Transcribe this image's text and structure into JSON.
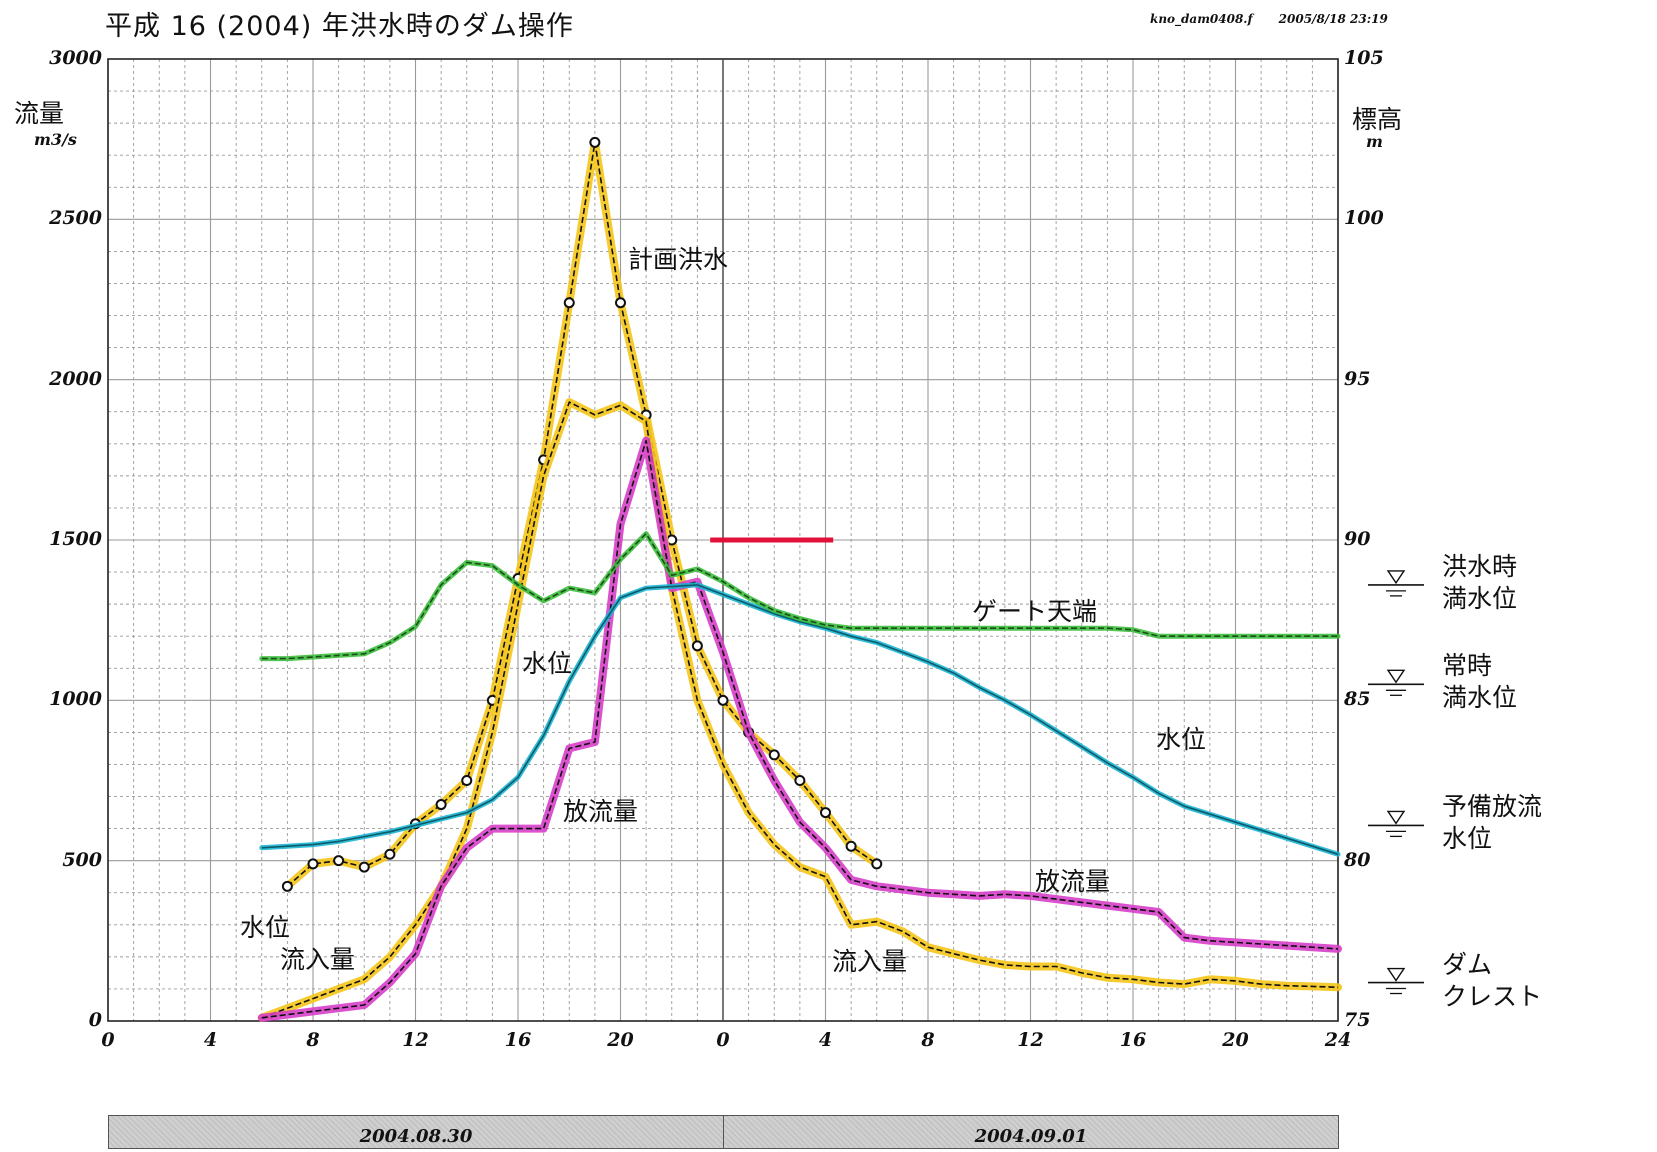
{
  "header": {
    "title": "平成 16 (2004) 年洪水時のダム操作",
    "file": "kno_dam0408.f",
    "stamp": "2005/8/18  23:19"
  },
  "chart_data": {
    "type": "line",
    "left_axis": {
      "label": "流量",
      "unit": "m3/s",
      "ylim": [
        0,
        3000
      ],
      "ticks": [
        0,
        500,
        1000,
        1500,
        2000,
        2500,
        3000
      ]
    },
    "right_axis": {
      "label": "標高",
      "unit": "m",
      "ylim": [
        75,
        105
      ],
      "ticks": [
        75,
        80,
        85,
        90,
        95,
        100,
        105
      ]
    },
    "x_axis": {
      "xlim": [
        0,
        48
      ],
      "tick_labels": [
        "0",
        "4",
        "8",
        "12",
        "16",
        "20",
        "0",
        "4",
        "8",
        "12",
        "16",
        "20",
        "24"
      ],
      "dates": [
        "2004.08.30",
        "2004.09.01"
      ],
      "grid": true
    },
    "series": [
      {
        "name": "計画洪水",
        "axis": "left",
        "color": "#f5c518",
        "markers": true,
        "points": [
          [
            7,
            420
          ],
          [
            8,
            490
          ],
          [
            9,
            500
          ],
          [
            10,
            480
          ],
          [
            11,
            520
          ],
          [
            12,
            615
          ],
          [
            13,
            675
          ],
          [
            14,
            750
          ],
          [
            15,
            1000
          ],
          [
            16,
            1380
          ],
          [
            17,
            1750
          ],
          [
            18,
            2240
          ],
          [
            19,
            2740
          ],
          [
            20,
            2240
          ],
          [
            21,
            1890
          ],
          [
            22,
            1500
          ],
          [
            23,
            1170
          ],
          [
            24,
            1000
          ],
          [
            25,
            900
          ],
          [
            26,
            830
          ],
          [
            27,
            750
          ],
          [
            28,
            650
          ],
          [
            29,
            545
          ],
          [
            30,
            490
          ]
        ]
      },
      {
        "name": "流入量",
        "axis": "left",
        "color": "#f5c518",
        "points": [
          [
            6,
            10
          ],
          [
            7,
            40
          ],
          [
            8,
            70
          ],
          [
            9,
            100
          ],
          [
            10,
            130
          ],
          [
            11,
            200
          ],
          [
            12,
            300
          ],
          [
            13,
            420
          ],
          [
            14,
            600
          ],
          [
            15,
            900
          ],
          [
            16,
            1300
          ],
          [
            17,
            1700
          ],
          [
            18,
            1930
          ],
          [
            19,
            1890
          ],
          [
            20,
            1920
          ],
          [
            21,
            1870
          ],
          [
            22,
            1350
          ],
          [
            23,
            1000
          ],
          [
            24,
            800
          ],
          [
            25,
            650
          ],
          [
            26,
            550
          ],
          [
            27,
            480
          ],
          [
            28,
            450
          ],
          [
            29,
            300
          ],
          [
            30,
            310
          ],
          [
            31,
            280
          ],
          [
            32,
            230
          ],
          [
            33,
            210
          ],
          [
            34,
            190
          ],
          [
            35,
            175
          ],
          [
            36,
            170
          ],
          [
            37,
            170
          ],
          [
            38,
            150
          ],
          [
            39,
            135
          ],
          [
            40,
            130
          ],
          [
            41,
            120
          ],
          [
            42,
            115
          ],
          [
            43,
            130
          ],
          [
            44,
            125
          ],
          [
            45,
            115
          ],
          [
            46,
            110
          ],
          [
            47,
            108
          ],
          [
            48,
            105
          ]
        ]
      },
      {
        "name": "放流量",
        "axis": "left",
        "color": "#d63fc8",
        "points": [
          [
            6,
            10
          ],
          [
            7,
            20
          ],
          [
            8,
            30
          ],
          [
            9,
            40
          ],
          [
            10,
            50
          ],
          [
            11,
            120
          ],
          [
            12,
            210
          ],
          [
            13,
            420
          ],
          [
            14,
            540
          ],
          [
            15,
            600
          ],
          [
            16,
            600
          ],
          [
            17,
            600
          ],
          [
            18,
            850
          ],
          [
            19,
            870
          ],
          [
            20,
            1550
          ],
          [
            21,
            1810
          ],
          [
            22,
            1350
          ],
          [
            23,
            1370
          ],
          [
            24,
            1150
          ],
          [
            25,
            900
          ],
          [
            26,
            750
          ],
          [
            27,
            620
          ],
          [
            28,
            540
          ],
          [
            29,
            440
          ],
          [
            30,
            420
          ],
          [
            31,
            410
          ],
          [
            32,
            400
          ],
          [
            33,
            395
          ],
          [
            34,
            390
          ],
          [
            35,
            395
          ],
          [
            36,
            390
          ],
          [
            37,
            380
          ],
          [
            38,
            370
          ],
          [
            39,
            360
          ],
          [
            40,
            350
          ],
          [
            41,
            340
          ],
          [
            42,
            260
          ],
          [
            43,
            250
          ],
          [
            44,
            245
          ],
          [
            45,
            240
          ],
          [
            46,
            235
          ],
          [
            47,
            230
          ],
          [
            48,
            225
          ]
        ]
      },
      {
        "name": "水位",
        "axis": "right",
        "color": "#19b5d1",
        "points": [
          [
            6,
            80.4
          ],
          [
            7,
            80.45
          ],
          [
            8,
            80.5
          ],
          [
            9,
            80.6
          ],
          [
            10,
            80.75
          ],
          [
            11,
            80.9
          ],
          [
            12,
            81.1
          ],
          [
            13,
            81.3
          ],
          [
            14,
            81.5
          ],
          [
            15,
            81.9
          ],
          [
            16,
            82.6
          ],
          [
            17,
            83.9
          ],
          [
            18,
            85.6
          ],
          [
            19,
            87.0
          ],
          [
            20,
            88.2
          ],
          [
            21,
            88.5
          ],
          [
            22,
            88.55
          ],
          [
            23,
            88.6
          ],
          [
            24,
            88.3
          ],
          [
            25,
            88.0
          ],
          [
            26,
            87.7
          ],
          [
            27,
            87.45
          ],
          [
            28,
            87.25
          ],
          [
            29,
            87.0
          ],
          [
            30,
            86.8
          ],
          [
            31,
            86.5
          ],
          [
            32,
            86.2
          ],
          [
            33,
            85.85
          ],
          [
            34,
            85.4
          ],
          [
            35,
            85.0
          ],
          [
            36,
            84.55
          ],
          [
            37,
            84.05
          ],
          [
            38,
            83.55
          ],
          [
            39,
            83.05
          ],
          [
            40,
            82.6
          ],
          [
            41,
            82.1
          ],
          [
            42,
            81.7
          ],
          [
            43,
            81.45
          ],
          [
            44,
            81.2
          ],
          [
            45,
            80.95
          ],
          [
            46,
            80.7
          ],
          [
            47,
            80.45
          ],
          [
            48,
            80.2
          ]
        ]
      },
      {
        "name": "ゲート天端",
        "axis": "right",
        "color": "#3cbf3c",
        "points": [
          [
            6,
            86.3
          ],
          [
            7,
            86.3
          ],
          [
            8,
            86.35
          ],
          [
            9,
            86.4
          ],
          [
            10,
            86.45
          ],
          [
            11,
            86.8
          ],
          [
            12,
            87.3
          ],
          [
            13,
            88.6
          ],
          [
            14,
            89.3
          ],
          [
            15,
            89.2
          ],
          [
            16,
            88.6
          ],
          [
            17,
            88.1
          ],
          [
            18,
            88.5
          ],
          [
            19,
            88.35
          ],
          [
            20,
            89.4
          ],
          [
            21,
            90.2
          ],
          [
            22,
            88.9
          ],
          [
            23,
            89.1
          ],
          [
            24,
            88.7
          ],
          [
            25,
            88.2
          ],
          [
            26,
            87.8
          ],
          [
            27,
            87.55
          ],
          [
            28,
            87.35
          ],
          [
            29,
            87.25
          ],
          [
            30,
            87.25
          ],
          [
            31,
            87.25
          ],
          [
            32,
            87.25
          ],
          [
            33,
            87.25
          ],
          [
            34,
            87.25
          ],
          [
            35,
            87.25
          ],
          [
            36,
            87.25
          ],
          [
            37,
            87.25
          ],
          [
            38,
            87.25
          ],
          [
            39,
            87.25
          ],
          [
            40,
            87.2
          ],
          [
            41,
            87.0
          ],
          [
            42,
            87.0
          ],
          [
            43,
            87.0
          ],
          [
            44,
            87.0
          ],
          [
            45,
            87.0
          ],
          [
            46,
            87.0
          ],
          [
            47,
            87.0
          ],
          [
            48,
            87.0
          ]
        ]
      }
    ],
    "annotations": [
      "計画洪水",
      "ゲート天端",
      "水位",
      "水位",
      "水位",
      "放流量",
      "放流量",
      "流入量",
      "流入量"
    ],
    "reference_levels": [
      {
        "label_lines": [
          "洪水時",
          "満水位"
        ],
        "elev": 88.6
      },
      {
        "label_lines": [
          "常時",
          "満水位"
        ],
        "elev": 85.5
      },
      {
        "label_lines": [
          "予備放流",
          "水位"
        ],
        "elev": 81.1
      },
      {
        "label_lines": [
          "ダム",
          "クレスト"
        ],
        "elev": 76.2
      }
    ],
    "marker_line": {
      "color": "#e0103a",
      "x": [
        23.5,
        28.3
      ],
      "y": 1500
    },
    "colors": {
      "grid": "#9a9a9a",
      "markers": "#111111",
      "dashes": "#111111"
    }
  }
}
